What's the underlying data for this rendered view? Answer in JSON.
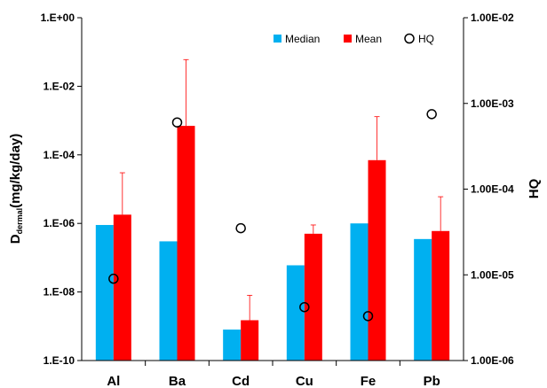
{
  "chart_data": {
    "type": "bar",
    "categories": [
      "Al",
      "Ba",
      "Cd",
      "Cu",
      "Fe",
      "Pb"
    ],
    "series": [
      {
        "name": "Median",
        "color": "#00b0f0",
        "values": [
          9e-07,
          3e-07,
          8e-10,
          6e-08,
          1e-06,
          3.5e-07
        ]
      },
      {
        "name": "Mean",
        "color": "#ff0000",
        "values": [
          1.8e-06,
          0.0007,
          1.5e-09,
          5e-07,
          7e-05,
          6e-07
        ],
        "error_upper": [
          3e-05,
          0.06,
          8e-09,
          9e-07,
          0.0013,
          6e-06
        ]
      }
    ],
    "hq": {
      "name": "HQ",
      "values": [
        9e-06,
        0.0006,
        3.5e-05,
        4.2e-06,
        3.3e-06,
        0.00075
      ]
    },
    "y_left": {
      "label_main": "D",
      "label_sub": "dermal",
      "label_unit": "(mg/kg/day)",
      "scale": "log",
      "ylim": [
        1e-10,
        1
      ],
      "ticks": [
        "1.E-10",
        "1.E-08",
        "1.E-06",
        "1.E-04",
        "1.E-02",
        "1.E+00"
      ]
    },
    "y_right": {
      "label": "HQ",
      "scale": "log",
      "ylim": [
        1e-06,
        0.01
      ],
      "ticks": [
        "1.00E-06",
        "1.00E-05",
        "1.00E-04",
        "1.00E-03",
        "1.00E-02"
      ]
    },
    "legend_position": "top-right",
    "grid": false
  }
}
